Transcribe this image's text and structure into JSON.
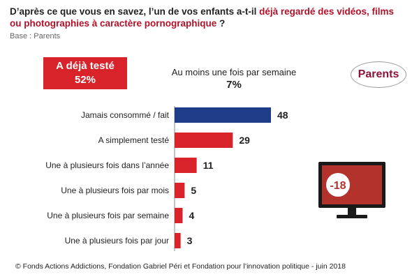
{
  "question": {
    "part1": "D’après ce que vous en savez, l’un de vos enfants a-t-il",
    "highlight": "déjà regardé des vidéos, films ou photographies à caractère pornographique",
    "part2": " ?"
  },
  "base": "Base : Parents",
  "tested_box": {
    "label": "A déjà testé",
    "value": "52%"
  },
  "weekly": {
    "label": "Au moins une fois par semaine",
    "value": "7%"
  },
  "brand": "Parents",
  "monitor_label": "-18",
  "footer": "© Fonds Actions Addictions, Fondation Gabriel Péri et Fondation pour l’innovation politique - juin 2018",
  "colors": {
    "blue": "#1f3c88",
    "red": "#d8232a",
    "brand": "#8a1538"
  },
  "chart_data": {
    "type": "bar",
    "orientation": "horizontal",
    "categories": [
      "Jamais consommé / fait",
      "A simplement testé",
      "Une à plusieurs fois dans l’année",
      "Une à plusieurs fois par mois",
      "Une à plusieurs fois par semaine",
      "Une à plusieurs fois par jour"
    ],
    "values": [
      48,
      29,
      11,
      5,
      4,
      3
    ],
    "bar_colors": [
      "#1f3c88",
      "#d8232a",
      "#d8232a",
      "#d8232a",
      "#d8232a",
      "#d8232a"
    ],
    "xlim": [
      0,
      48
    ],
    "grid": false
  }
}
